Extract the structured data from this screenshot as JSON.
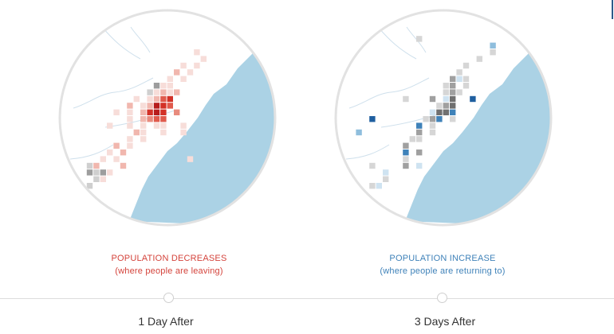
{
  "panels": [
    {
      "id": "day1",
      "title": "POPULATION DECREASES",
      "subtitle": "(where people are leaving)",
      "step_label": "1 Day After",
      "active": false,
      "palette": {
        "1": "#f7ddd9",
        "2": "#f1b7ae",
        "3": "#e88b7e",
        "4": "#e05a4c",
        "5": "#d33127",
        "6": "#b71c1c",
        "g": "#cfcfcf",
        "G": "#9d9d9d"
      },
      "grid": [
        "........................",
        "........................",
        "........................",
        "........................",
        "........................",
        "..................1.....",
        "...................1....",
        "................1.1.....",
        "...............2.1......",
        "..............1.1.......",
        "............G11.........",
        "...........g1212........",
        ".........1.1245.........",
        "........2.12654.........",
        "......1.1.2565.3........",
        "........1.2344..........",
        ".....1..1.1.11..1.......",
        ".........21..1..1.......",
        "........1.1.............",
        "......2.1...............",
        ".....1.2................",
        "....1.1..........1......",
        "..g2...2................",
        "..GgG1..................",
        "...g1...................",
        "..g.....................",
        "........................",
        "........................",
        "........................",
        "........................"
      ]
    },
    {
      "id": "day3",
      "title": "POPULATION INCREASE",
      "subtitle": "(where people are returning to)",
      "step_label": "3 Days After",
      "active": false,
      "palette": {
        "1": "#cfe3f1",
        "2": "#8fbedd",
        "3": "#3f82b9",
        "4": "#1f5f9f",
        "g": "#d6d6d6",
        "G": "#a0a0a0",
        "D": "#707070"
      },
      "grid": [
        "........................",
        "........................",
        "........................",
        "..........g.............",
        ".....................2..",
        ".....................g..",
        "...................g....",
        ".................g......",
        "................g.......",
        "...............G1g......",
        "..............gG.g......",
        "..............gGg.......",
        "........g...G.1D..4.....",
        ".............gGD........",
        "............1DD3........",
        "...........gG3.g........",
        "..........3.g...........",
        "..........G.g...........",
        ".........gg.............",
        "........G...............",
        "........3.G.............",
        "........g...............",
        "...g....G.1.............",
        ".....1..................",
        ".....g..................",
        "...g1...................",
        "........................",
        "........................",
        "........................",
        "........................"
      ],
      "extra_cells": [
        {
          "col": 3,
          "row": 15,
          "c": "4"
        },
        {
          "col": 1,
          "row": 17,
          "c": "2"
        }
      ]
    }
  ]
}
